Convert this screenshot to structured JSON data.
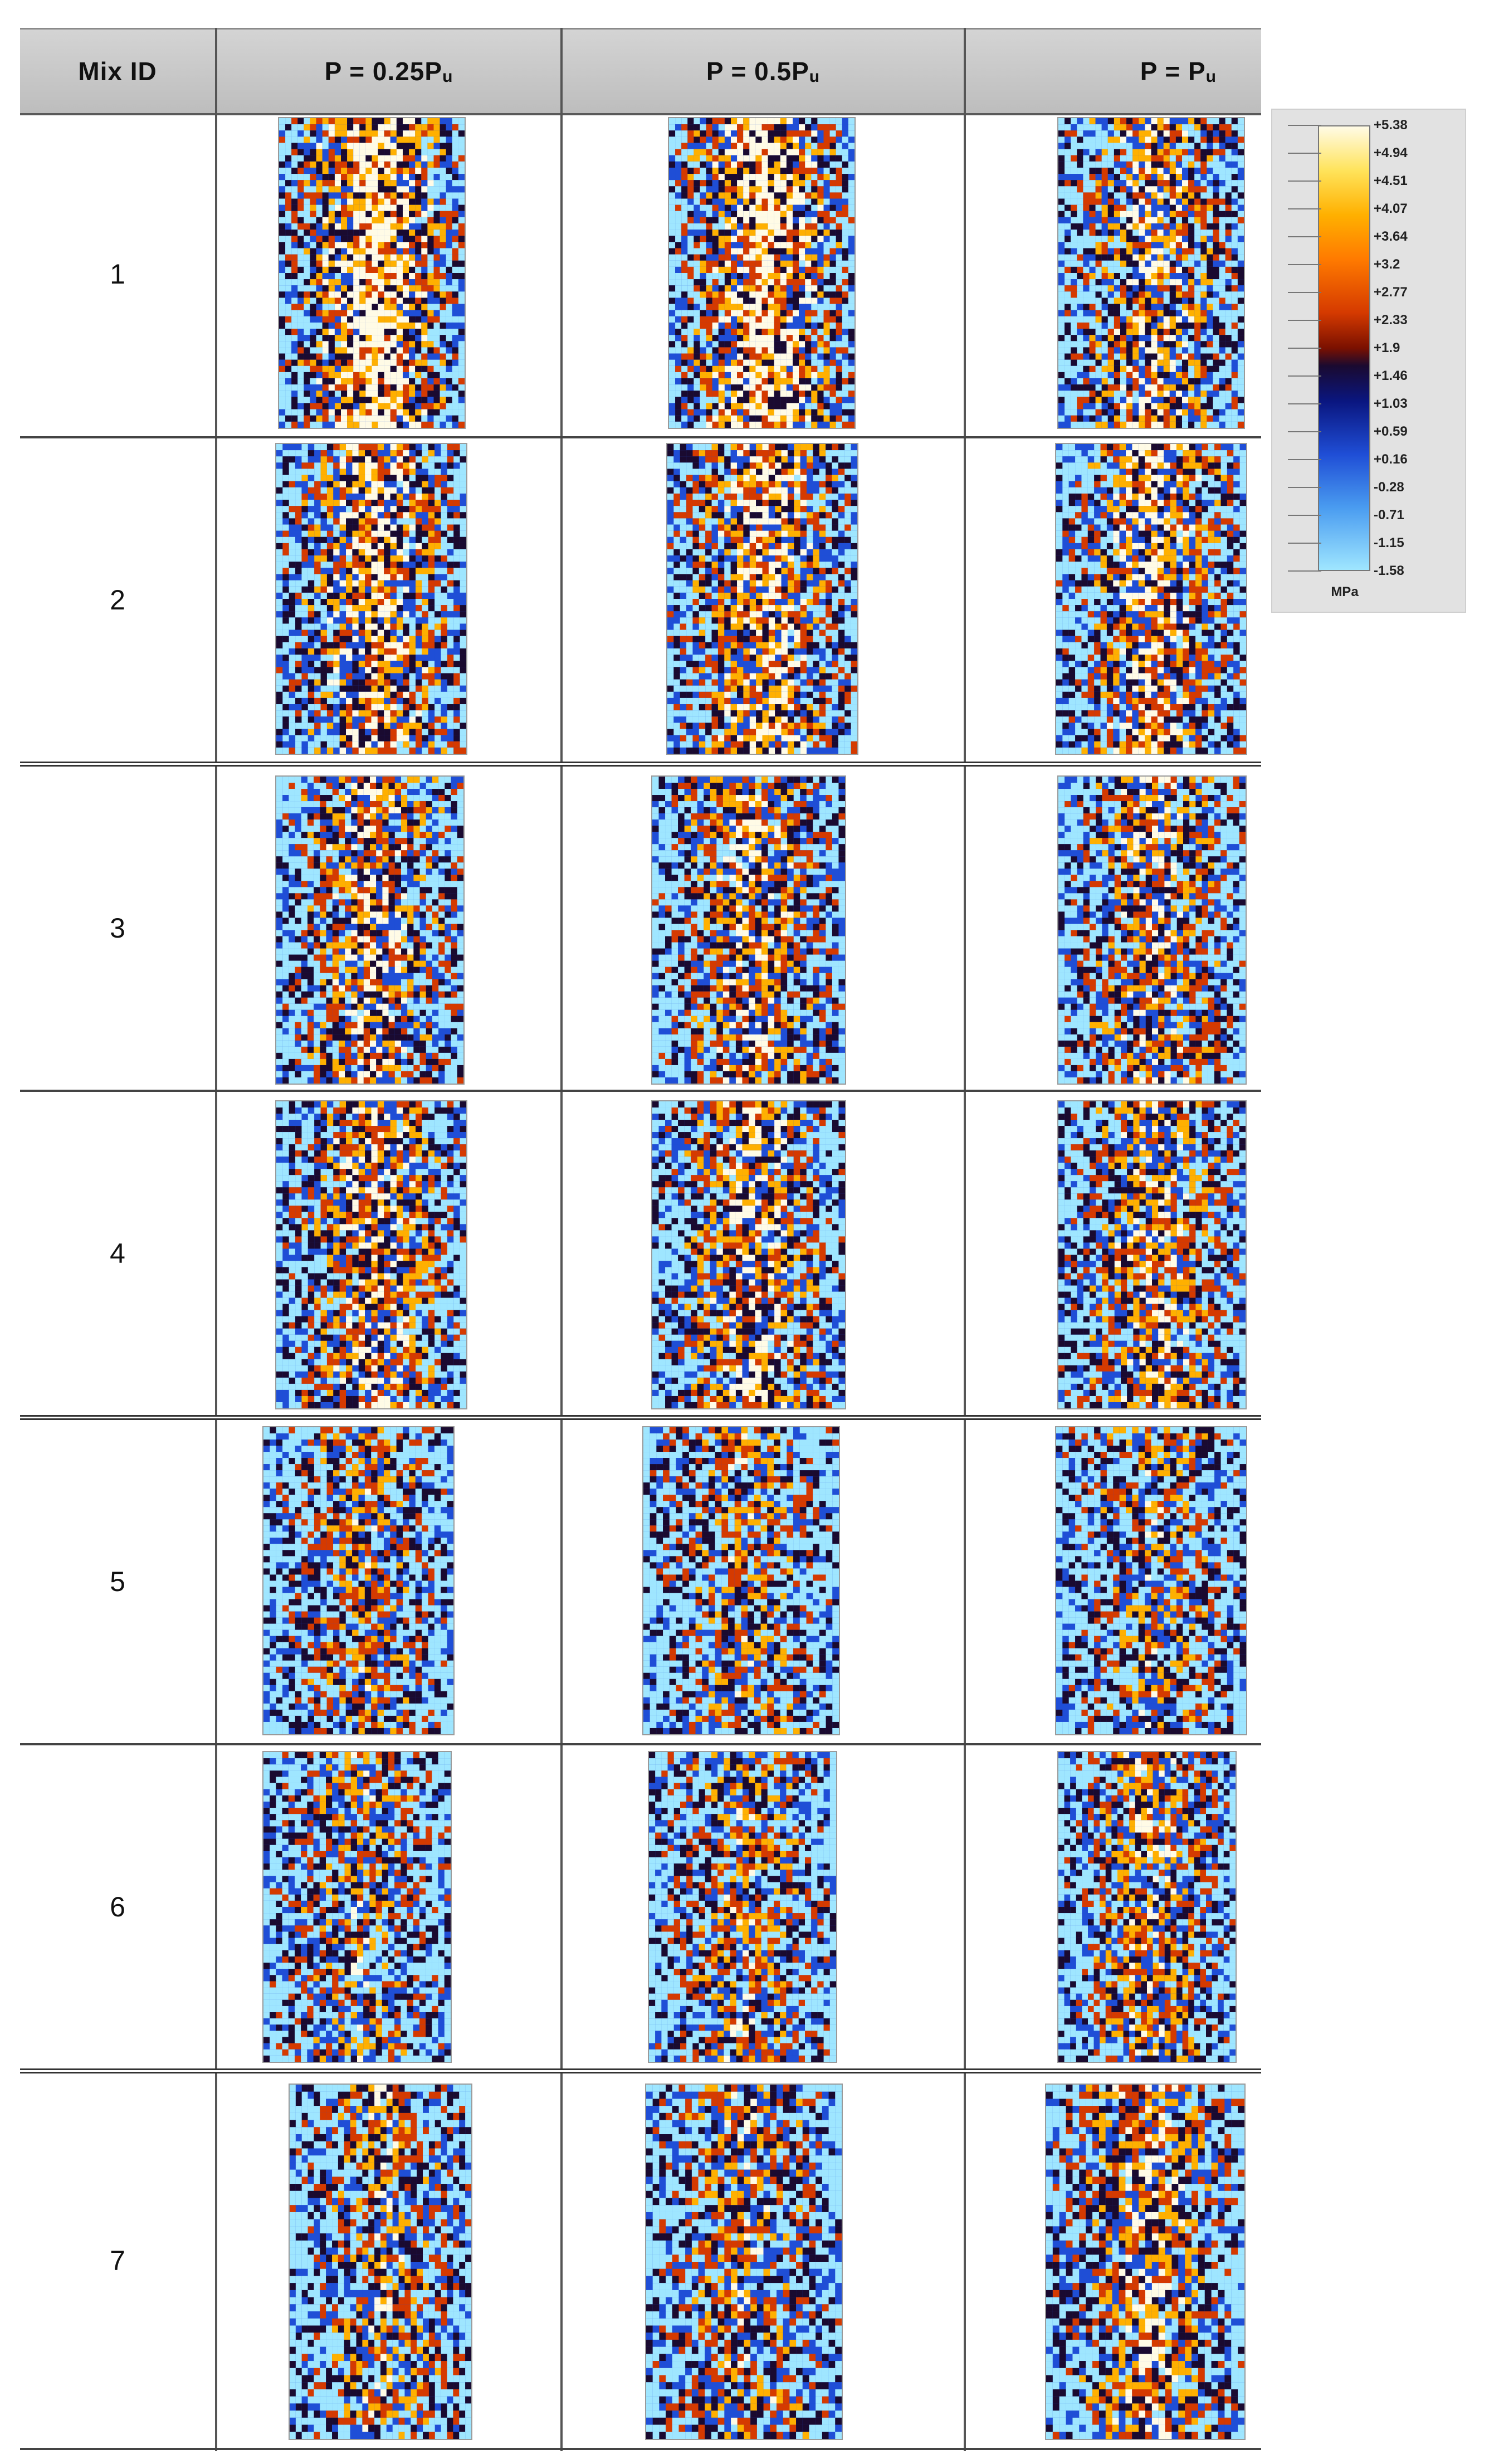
{
  "table": {
    "header": {
      "mix_id": "Mix ID",
      "col1": {
        "main": "P = 0.25P",
        "sub": "u"
      },
      "col2": {
        "main": "P = 0.5P",
        "sub": "u"
      },
      "col3": {
        "main": "P = P",
        "sub": "u"
      }
    },
    "rows": [
      {
        "id": "1"
      },
      {
        "id": "2"
      },
      {
        "id": "3"
      },
      {
        "id": "4"
      },
      {
        "id": "5"
      },
      {
        "id": "6"
      },
      {
        "id": "7"
      }
    ]
  },
  "legend": {
    "unit": "MPa",
    "labels": [
      "+5.38",
      "+4.94",
      "+4.51",
      "+4.07",
      "+3.64",
      "+3.2",
      "+2.77",
      "+2.33",
      "+1.9",
      "+1.46",
      "+1.03",
      "+0.59",
      "+0.16",
      "-0.28",
      "-0.71",
      "-1.15",
      "-1.58"
    ],
    "colors": {
      "max": "#fffbe6",
      "high": "#ffb000",
      "mid_high": "#d53a00",
      "mid": "#1a0a30",
      "mid_low": "#1f4ed6",
      "min": "#9fe6ff"
    }
  }
}
